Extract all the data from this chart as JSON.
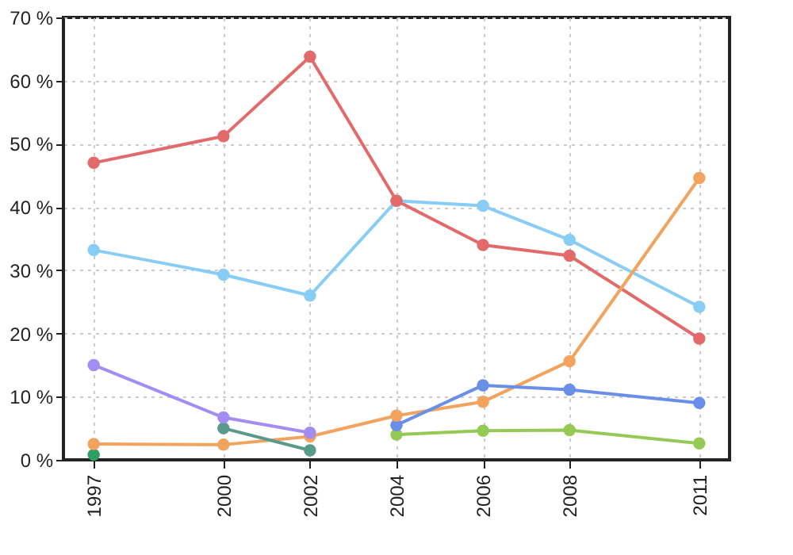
{
  "chart_data": {
    "type": "line",
    "xlim": [
      1996.3,
      2011.7
    ],
    "xticks": [
      1997,
      2000,
      2002,
      2004,
      2006,
      2008,
      2011
    ],
    "ylim": [
      0,
      70
    ],
    "yticks": [
      {
        "value": 0,
        "label": "0 %"
      },
      {
        "value": 10,
        "label": "10 %"
      },
      {
        "value": 20,
        "label": "20 %"
      },
      {
        "value": 30,
        "label": "30 %"
      },
      {
        "value": 40,
        "label": "40 %"
      },
      {
        "value": 50,
        "label": "50 %"
      },
      {
        "value": 60,
        "label": "60 %"
      },
      {
        "value": 70,
        "label": "70 %"
      }
    ],
    "grid": true,
    "marker": "circle",
    "line_style": "solid",
    "series": [
      {
        "color": "#e36a6a",
        "x": [
          1997,
          2000,
          2002,
          2004,
          2006,
          2008,
          2011
        ],
        "values": [
          47,
          51.2,
          63.8,
          41,
          34,
          32.3,
          19.2
        ]
      },
      {
        "color": "#87cdf5",
        "x": [
          1997,
          2000,
          2002,
          2004,
          2006,
          2008,
          2011
        ],
        "values": [
          33.2,
          29.3,
          26,
          41,
          40.2,
          34.8,
          24.2
        ]
      },
      {
        "color": "#a38cf2",
        "x": [
          1997,
          2000,
          2002
        ],
        "values": [
          15,
          6.7,
          4.3
        ]
      },
      {
        "color": "#f2a35e",
        "x": [
          1997,
          2000,
          2002,
          2004,
          2006,
          2008,
          2011
        ],
        "values": [
          2.5,
          2.4,
          3.7,
          7,
          9.2,
          15.6,
          44.6
        ]
      },
      {
        "color": "#5a9a8c",
        "x": [
          2000,
          2002
        ],
        "values": [
          5,
          1.5
        ]
      },
      {
        "color": "#6a8fe8",
        "x": [
          2004,
          2006,
          2008,
          2011
        ],
        "values": [
          5.5,
          11.8,
          11.1,
          9
        ]
      },
      {
        "color": "#94c954",
        "x": [
          2004,
          2006,
          2008,
          2011
        ],
        "values": [
          4,
          4.6,
          4.7,
          2.6
        ]
      },
      {
        "color": "#2e9e62",
        "x": [
          1997
        ],
        "values": [
          0.8
        ]
      }
    ]
  }
}
